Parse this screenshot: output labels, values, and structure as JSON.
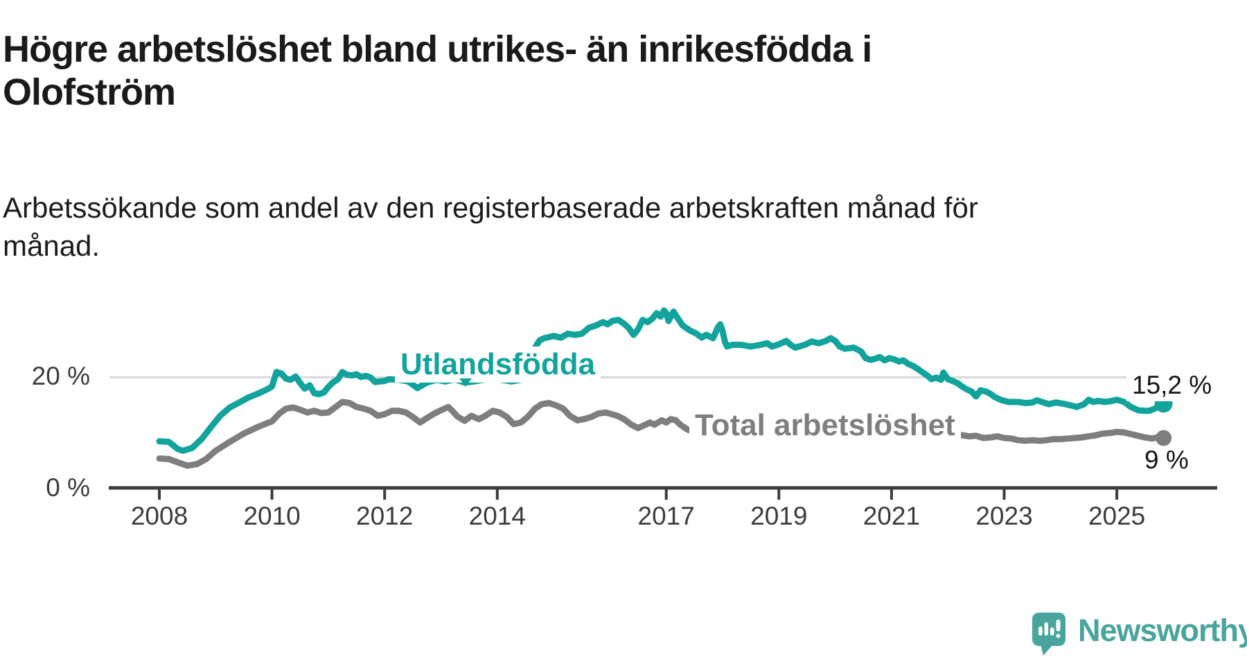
{
  "title": "Högre arbetslöshet bland utrikes- än inrikesfödda i\nOlofström",
  "subtitle": "Arbetssökande som andel av den registerbaserade arbetskraften månad för\nmånad.",
  "branding": {
    "logo_text": "Newsworthy"
  },
  "colors": {
    "accent_teal": "#12a39d",
    "series_gray": "#7e7e7e",
    "axis": "#3b3b3b",
    "gridline": "#d9d9d9",
    "text": "#1a1a1a",
    "logo_teal": "#48a49d"
  },
  "chart_data": {
    "type": "line",
    "unit": "%",
    "x_axis": {
      "tick_years": [
        2008,
        2010,
        2012,
        2014,
        2017,
        2019,
        2021,
        2023,
        2025
      ],
      "range": [
        2007.1,
        2026.8
      ]
    },
    "y_axis": {
      "ticks": [
        {
          "value": 0,
          "label": "0 %"
        },
        {
          "value": 20,
          "label": "20 %"
        }
      ],
      "range": [
        0,
        40
      ],
      "gridline_values": [
        20
      ]
    },
    "series": [
      {
        "name": "Utlandsfödda",
        "color": "#12a39d",
        "end_label": "15,2 %",
        "end_value": 15.2,
        "points": [
          [
            2008.0,
            8.4
          ],
          [
            2008.17,
            8.3
          ],
          [
            2008.33,
            7.0
          ],
          [
            2008.42,
            6.7
          ],
          [
            2008.58,
            7.2
          ],
          [
            2008.75,
            8.8
          ],
          [
            2008.92,
            11.0
          ],
          [
            2009.08,
            13.0
          ],
          [
            2009.25,
            14.5
          ],
          [
            2009.42,
            15.4
          ],
          [
            2009.58,
            16.3
          ],
          [
            2009.75,
            17.0
          ],
          [
            2009.92,
            17.8
          ],
          [
            2010.0,
            18.3
          ],
          [
            2010.08,
            20.9
          ],
          [
            2010.17,
            20.6
          ],
          [
            2010.25,
            19.7
          ],
          [
            2010.33,
            19.5
          ],
          [
            2010.42,
            20.1
          ],
          [
            2010.5,
            18.9
          ],
          [
            2010.58,
            17.9
          ],
          [
            2010.67,
            18.5
          ],
          [
            2010.75,
            17.1
          ],
          [
            2010.83,
            16.9
          ],
          [
            2010.92,
            17.2
          ],
          [
            2011.0,
            18.2
          ],
          [
            2011.08,
            19.0
          ],
          [
            2011.17,
            19.6
          ],
          [
            2011.25,
            20.9
          ],
          [
            2011.33,
            20.4
          ],
          [
            2011.42,
            20.3
          ],
          [
            2011.5,
            20.5
          ],
          [
            2011.58,
            20.0
          ],
          [
            2011.67,
            20.2
          ],
          [
            2011.75,
            19.9
          ],
          [
            2011.83,
            19.1
          ],
          [
            2011.92,
            19.2
          ],
          [
            2012.0,
            19.3
          ],
          [
            2012.08,
            19.6
          ],
          [
            2012.25,
            19.5
          ],
          [
            2012.42,
            19.2
          ],
          [
            2012.58,
            18.0
          ],
          [
            2012.75,
            19.0
          ],
          [
            2012.92,
            19.5
          ],
          [
            2013.08,
            19.2
          ],
          [
            2013.25,
            19.6
          ],
          [
            2013.42,
            19.0
          ],
          [
            2013.58,
            19.2
          ],
          [
            2013.75,
            19.5
          ],
          [
            2013.92,
            19.7
          ],
          [
            2014.08,
            19.5
          ],
          [
            2014.25,
            19.2
          ],
          [
            2014.42,
            19.5
          ],
          [
            2014.58,
            20.1
          ],
          [
            2014.67,
            25.3
          ],
          [
            2014.75,
            26.6
          ],
          [
            2014.83,
            27.0
          ],
          [
            2014.92,
            27.2
          ],
          [
            2015.0,
            27.4
          ],
          [
            2015.13,
            27.1
          ],
          [
            2015.25,
            27.8
          ],
          [
            2015.38,
            27.6
          ],
          [
            2015.5,
            27.8
          ],
          [
            2015.63,
            28.9
          ],
          [
            2015.75,
            29.3
          ],
          [
            2015.88,
            29.9
          ],
          [
            2015.96,
            29.5
          ],
          [
            2016.04,
            30.1
          ],
          [
            2016.15,
            30.3
          ],
          [
            2016.25,
            29.6
          ],
          [
            2016.33,
            28.9
          ],
          [
            2016.42,
            27.6
          ],
          [
            2016.5,
            28.6
          ],
          [
            2016.58,
            30.3
          ],
          [
            2016.67,
            29.9
          ],
          [
            2016.75,
            30.5
          ],
          [
            2016.83,
            31.5
          ],
          [
            2016.9,
            30.9
          ],
          [
            2016.96,
            32.0
          ],
          [
            2017.0,
            31.5
          ],
          [
            2017.04,
            30.1
          ],
          [
            2017.08,
            30.9
          ],
          [
            2017.13,
            31.8
          ],
          [
            2017.21,
            30.5
          ],
          [
            2017.29,
            29.3
          ],
          [
            2017.42,
            28.4
          ],
          [
            2017.54,
            27.8
          ],
          [
            2017.63,
            27.1
          ],
          [
            2017.71,
            27.6
          ],
          [
            2017.83,
            27.0
          ],
          [
            2017.92,
            29.0
          ],
          [
            2017.96,
            29.5
          ],
          [
            2018.0,
            28.3
          ],
          [
            2018.04,
            26.4
          ],
          [
            2018.08,
            25.5
          ],
          [
            2018.17,
            25.8
          ],
          [
            2018.33,
            25.8
          ],
          [
            2018.5,
            25.5
          ],
          [
            2018.67,
            25.8
          ],
          [
            2018.79,
            26.1
          ],
          [
            2018.88,
            25.5
          ],
          [
            2019.0,
            25.9
          ],
          [
            2019.13,
            26.5
          ],
          [
            2019.21,
            25.8
          ],
          [
            2019.29,
            25.3
          ],
          [
            2019.46,
            25.8
          ],
          [
            2019.58,
            26.4
          ],
          [
            2019.71,
            26.1
          ],
          [
            2019.83,
            26.5
          ],
          [
            2019.92,
            27.0
          ],
          [
            2020.0,
            26.5
          ],
          [
            2020.08,
            25.5
          ],
          [
            2020.17,
            25.1
          ],
          [
            2020.33,
            25.3
          ],
          [
            2020.46,
            24.6
          ],
          [
            2020.54,
            23.4
          ],
          [
            2020.63,
            23.1
          ],
          [
            2020.71,
            23.3
          ],
          [
            2020.79,
            23.6
          ],
          [
            2020.88,
            23.0
          ],
          [
            2020.96,
            23.4
          ],
          [
            2021.04,
            23.2
          ],
          [
            2021.13,
            22.8
          ],
          [
            2021.21,
            23.0
          ],
          [
            2021.29,
            22.4
          ],
          [
            2021.38,
            22.0
          ],
          [
            2021.46,
            21.5
          ],
          [
            2021.54,
            20.9
          ],
          [
            2021.63,
            20.3
          ],
          [
            2021.71,
            19.6
          ],
          [
            2021.79,
            19.9
          ],
          [
            2021.88,
            19.5
          ],
          [
            2021.92,
            20.8
          ],
          [
            2022.0,
            19.6
          ],
          [
            2022.08,
            19.3
          ],
          [
            2022.17,
            18.9
          ],
          [
            2022.25,
            18.3
          ],
          [
            2022.33,
            17.8
          ],
          [
            2022.42,
            17.4
          ],
          [
            2022.5,
            16.5
          ],
          [
            2022.58,
            17.6
          ],
          [
            2022.67,
            17.4
          ],
          [
            2022.75,
            17.0
          ],
          [
            2022.83,
            16.4
          ],
          [
            2022.96,
            15.8
          ],
          [
            2023.08,
            15.5
          ],
          [
            2023.25,
            15.5
          ],
          [
            2023.38,
            15.3
          ],
          [
            2023.5,
            15.4
          ],
          [
            2023.58,
            15.8
          ],
          [
            2023.67,
            15.5
          ],
          [
            2023.79,
            15.1
          ],
          [
            2023.92,
            15.4
          ],
          [
            2024.04,
            15.2
          ],
          [
            2024.17,
            14.9
          ],
          [
            2024.29,
            14.6
          ],
          [
            2024.42,
            15.1
          ],
          [
            2024.5,
            15.9
          ],
          [
            2024.58,
            15.5
          ],
          [
            2024.67,
            15.7
          ],
          [
            2024.79,
            15.5
          ],
          [
            2024.92,
            15.7
          ],
          [
            2025.0,
            15.9
          ],
          [
            2025.13,
            15.5
          ],
          [
            2025.25,
            14.6
          ],
          [
            2025.38,
            14.0
          ],
          [
            2025.5,
            13.9
          ],
          [
            2025.58,
            13.9
          ],
          [
            2025.67,
            14.3
          ],
          [
            2025.75,
            14.7
          ],
          [
            2025.83,
            15.2
          ]
        ]
      },
      {
        "name": "Total arbetslöshet",
        "color": "#7e7e7e",
        "end_label": "9 %",
        "end_value": 9.0,
        "points": [
          [
            2008.0,
            5.3
          ],
          [
            2008.17,
            5.2
          ],
          [
            2008.33,
            4.6
          ],
          [
            2008.5,
            4.0
          ],
          [
            2008.67,
            4.3
          ],
          [
            2008.83,
            5.2
          ],
          [
            2009.0,
            6.7
          ],
          [
            2009.25,
            8.3
          ],
          [
            2009.5,
            9.8
          ],
          [
            2009.75,
            11.0
          ],
          [
            2009.92,
            11.7
          ],
          [
            2010.0,
            12.0
          ],
          [
            2010.13,
            13.4
          ],
          [
            2010.25,
            14.3
          ],
          [
            2010.38,
            14.5
          ],
          [
            2010.5,
            14.1
          ],
          [
            2010.63,
            13.6
          ],
          [
            2010.75,
            13.9
          ],
          [
            2010.88,
            13.5
          ],
          [
            2011.0,
            13.6
          ],
          [
            2011.13,
            14.6
          ],
          [
            2011.25,
            15.5
          ],
          [
            2011.38,
            15.3
          ],
          [
            2011.5,
            14.6
          ],
          [
            2011.63,
            14.3
          ],
          [
            2011.75,
            13.9
          ],
          [
            2011.88,
            13.0
          ],
          [
            2012.0,
            13.3
          ],
          [
            2012.13,
            13.9
          ],
          [
            2012.25,
            13.9
          ],
          [
            2012.38,
            13.6
          ],
          [
            2012.5,
            12.8
          ],
          [
            2012.63,
            11.8
          ],
          [
            2012.75,
            12.6
          ],
          [
            2012.88,
            13.4
          ],
          [
            2013.0,
            14.0
          ],
          [
            2013.13,
            14.6
          ],
          [
            2013.21,
            13.8
          ],
          [
            2013.29,
            12.9
          ],
          [
            2013.42,
            12.1
          ],
          [
            2013.54,
            13.0
          ],
          [
            2013.67,
            12.4
          ],
          [
            2013.79,
            13.0
          ],
          [
            2013.92,
            13.9
          ],
          [
            2014.04,
            13.6
          ],
          [
            2014.17,
            12.8
          ],
          [
            2014.29,
            11.5
          ],
          [
            2014.42,
            11.8
          ],
          [
            2014.54,
            12.8
          ],
          [
            2014.67,
            14.3
          ],
          [
            2014.79,
            15.1
          ],
          [
            2014.92,
            15.3
          ],
          [
            2015.04,
            14.9
          ],
          [
            2015.17,
            14.3
          ],
          [
            2015.29,
            13.0
          ],
          [
            2015.42,
            12.2
          ],
          [
            2015.54,
            12.4
          ],
          [
            2015.67,
            12.8
          ],
          [
            2015.79,
            13.4
          ],
          [
            2015.92,
            13.6
          ],
          [
            2016.0,
            13.4
          ],
          [
            2016.13,
            13.0
          ],
          [
            2016.25,
            12.4
          ],
          [
            2016.38,
            11.4
          ],
          [
            2016.5,
            10.8
          ],
          [
            2016.63,
            11.4
          ],
          [
            2016.71,
            11.8
          ],
          [
            2016.79,
            11.4
          ],
          [
            2016.92,
            12.2
          ],
          [
            2017.0,
            11.8
          ],
          [
            2017.08,
            12.4
          ],
          [
            2017.17,
            12.2
          ],
          [
            2017.25,
            11.4
          ],
          [
            2017.38,
            10.5
          ],
          [
            2017.5,
            10.1
          ],
          [
            2017.63,
            10.3
          ],
          [
            2017.71,
            10.9
          ],
          [
            2017.79,
            10.5
          ],
          [
            2017.88,
            10.3
          ],
          [
            2018.1,
            10.1
          ],
          [
            2018.4,
            9.8
          ],
          [
            2018.7,
            9.6
          ],
          [
            2019.0,
            9.4
          ],
          [
            2019.3,
            9.3
          ],
          [
            2019.6,
            9.2
          ],
          [
            2019.9,
            9.5
          ],
          [
            2020.2,
            10.2
          ],
          [
            2020.5,
            10.6
          ],
          [
            2020.8,
            10.4
          ],
          [
            2021.1,
            10.1
          ],
          [
            2021.4,
            9.9
          ],
          [
            2021.7,
            9.8
          ],
          [
            2022.0,
            9.6
          ],
          [
            2022.25,
            9.5
          ],
          [
            2022.38,
            9.3
          ],
          [
            2022.5,
            9.4
          ],
          [
            2022.63,
            9.0
          ],
          [
            2022.75,
            9.1
          ],
          [
            2022.88,
            9.3
          ],
          [
            2023.0,
            9.0
          ],
          [
            2023.13,
            8.9
          ],
          [
            2023.25,
            8.6
          ],
          [
            2023.38,
            8.5
          ],
          [
            2023.5,
            8.6
          ],
          [
            2023.63,
            8.5
          ],
          [
            2023.75,
            8.6
          ],
          [
            2023.88,
            8.8
          ],
          [
            2024.0,
            8.8
          ],
          [
            2024.13,
            8.9
          ],
          [
            2024.25,
            9.0
          ],
          [
            2024.38,
            9.1
          ],
          [
            2024.5,
            9.3
          ],
          [
            2024.63,
            9.5
          ],
          [
            2024.75,
            9.8
          ],
          [
            2024.88,
            9.9
          ],
          [
            2025.0,
            10.1
          ],
          [
            2025.13,
            10.0
          ],
          [
            2025.25,
            9.7
          ],
          [
            2025.38,
            9.4
          ],
          [
            2025.5,
            9.1
          ],
          [
            2025.63,
            8.9
          ],
          [
            2025.75,
            9.2
          ],
          [
            2025.83,
            9.0
          ]
        ]
      }
    ]
  }
}
